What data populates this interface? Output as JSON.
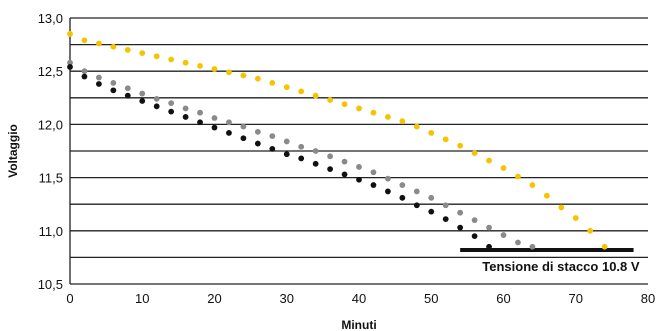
{
  "chart_data": {
    "type": "scatter",
    "title": "",
    "xlabel": "Minuti",
    "ylabel": "Voltaggio",
    "xlim": [
      0,
      80
    ],
    "ylim": [
      10.5,
      13.0
    ],
    "x_ticks": [
      0,
      10,
      20,
      30,
      40,
      50,
      60,
      70,
      80
    ],
    "y_ticks": [
      10.5,
      11.0,
      11.5,
      12.0,
      12.5,
      13.0
    ],
    "y_tick_labels": [
      "10,5",
      "11,0",
      "11,5",
      "12,0",
      "12,5",
      "13,0"
    ],
    "grid": "horizontal-every-0.25",
    "series": [
      {
        "color": "#f5c400",
        "x": [
          0,
          2,
          4,
          6,
          8,
          10,
          12,
          14,
          16,
          18,
          20,
          22,
          24,
          26,
          28,
          30,
          32,
          34,
          36,
          38,
          40,
          42,
          44,
          46,
          48,
          50,
          52,
          54,
          56,
          58,
          60,
          62,
          64,
          66,
          68,
          70,
          72,
          74
        ],
        "y": [
          12.85,
          12.79,
          12.76,
          12.73,
          12.7,
          12.67,
          12.64,
          12.61,
          12.58,
          12.55,
          12.52,
          12.49,
          12.46,
          12.43,
          12.39,
          12.35,
          12.31,
          12.27,
          12.23,
          12.19,
          12.15,
          12.11,
          12.07,
          12.03,
          11.98,
          11.92,
          11.86,
          11.8,
          11.73,
          11.66,
          11.59,
          11.51,
          11.43,
          11.33,
          11.22,
          11.12,
          11.0,
          10.85
        ]
      },
      {
        "color": "#8a8a8a",
        "x": [
          0,
          2,
          4,
          6,
          8,
          10,
          12,
          14,
          16,
          18,
          20,
          22,
          24,
          26,
          28,
          30,
          32,
          34,
          36,
          38,
          40,
          42,
          44,
          46,
          48,
          50,
          52,
          54,
          56,
          58,
          60,
          62,
          64
        ],
        "y": [
          12.58,
          12.5,
          12.44,
          12.39,
          12.34,
          12.29,
          12.24,
          12.2,
          12.15,
          12.11,
          12.06,
          12.02,
          11.98,
          11.93,
          11.89,
          11.84,
          11.79,
          11.75,
          11.7,
          11.65,
          11.6,
          11.55,
          11.49,
          11.43,
          11.37,
          11.31,
          11.24,
          11.17,
          11.1,
          11.03,
          10.96,
          10.89,
          10.85
        ]
      },
      {
        "color": "#111111",
        "x": [
          0,
          2,
          4,
          6,
          8,
          10,
          12,
          14,
          16,
          18,
          20,
          22,
          24,
          26,
          28,
          30,
          32,
          34,
          36,
          38,
          40,
          42,
          44,
          46,
          48,
          50,
          52,
          54,
          56,
          58
        ],
        "y": [
          12.54,
          12.45,
          12.38,
          12.32,
          12.27,
          12.22,
          12.17,
          12.12,
          12.07,
          12.02,
          11.97,
          11.92,
          11.87,
          11.82,
          11.77,
          11.72,
          11.68,
          11.63,
          11.58,
          11.53,
          11.48,
          11.43,
          11.37,
          11.31,
          11.24,
          11.18,
          11.11,
          11.03,
          10.95,
          10.85
        ]
      }
    ],
    "cutoff_line": {
      "value": 10.82,
      "x_start": 54,
      "x_end": 78,
      "label": "Tensione di stacco 10.8 V"
    }
  }
}
